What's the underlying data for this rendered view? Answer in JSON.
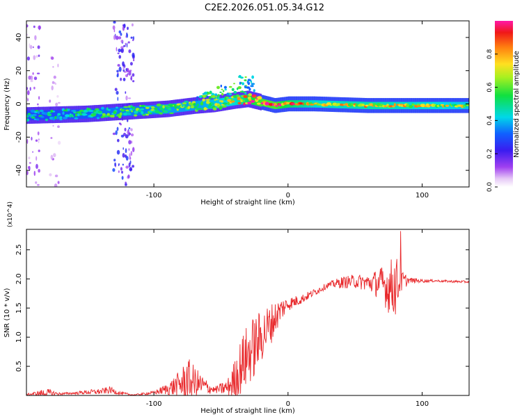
{
  "title": "C2E2.2026.051.05.34.G12",
  "colors": {
    "snr_line": "#e8282b",
    "spectrogram_background": "#ffffff"
  },
  "chart_data": [
    {
      "type": "heatmap",
      "name": "spectrogram",
      "xlabel": "Height of straight line (km)",
      "ylabel": "Frequency (Hz)",
      "xlim": [
        -195,
        135
      ],
      "ylim": [
        -50,
        50
      ],
      "xticks": [
        -100,
        0,
        100
      ],
      "xtick_labels": [
        "-100",
        "0",
        "100"
      ],
      "yticks": [
        -40,
        -20,
        0,
        20,
        40
      ],
      "ytick_labels": [
        "-40",
        "-20",
        "0",
        "20",
        "40"
      ],
      "colorbar": {
        "label": "Normalized spectral amplitude",
        "range": [
          0,
          1
        ],
        "ticks": [
          0,
          0.2,
          0.4,
          0.6,
          0.8
        ],
        "tick_labels": [
          "0.0",
          "0.2",
          "0.4",
          "0.6",
          "0.8"
        ],
        "colormap": "rainbow (white, violet, blue, cyan, green, yellow, orange, red, magenta)"
      },
      "ridge": {
        "x": [
          -195,
          -150,
          -130,
          -110,
          -90,
          -70,
          -55,
          -40,
          -30,
          -20,
          -10,
          0,
          20,
          60,
          100,
          135
        ],
        "center_freq": [
          -7,
          -6,
          -5,
          -4,
          -3,
          -1,
          0,
          2,
          3,
          1,
          -1,
          0,
          0,
          -1,
          -1,
          -1
        ],
        "amplitude": [
          0.45,
          0.5,
          0.55,
          0.55,
          0.6,
          0.6,
          0.65,
          0.7,
          0.85,
          0.95,
          0.95,
          0.85,
          0.7,
          0.75,
          0.7,
          0.65
        ]
      },
      "noise_bands": [
        {
          "x_range": [
            -130,
            -115
          ],
          "freq_range": [
            -50,
            50
          ],
          "amplitude": 0.25
        },
        {
          "x_range": [
            -195,
            -185
          ],
          "freq_range": [
            -50,
            50
          ],
          "amplitude": 0.15
        },
        {
          "x_range": [
            -178,
            -170
          ],
          "freq_range": [
            -50,
            30
          ],
          "amplitude": 0.1
        }
      ]
    },
    {
      "type": "line",
      "name": "snr",
      "xlabel": "Height of straight line (km)",
      "ylabel": "SNR (10 * v/v)",
      "y_multiplier": "(x10^4)",
      "xlim": [
        -195,
        135
      ],
      "ylim": [
        0,
        2.85
      ],
      "xticks": [
        -100,
        0,
        100
      ],
      "xtick_labels": [
        "-100",
        "0",
        "100"
      ],
      "yticks": [
        0.5,
        1.0,
        1.5,
        2.0,
        2.5
      ],
      "ytick_labels": [
        "0.5",
        "1.0",
        "1.5",
        "2.0",
        "2.5"
      ],
      "series": [
        {
          "name": "SNR",
          "x": [
            -195,
            -180,
            -170,
            -160,
            -150,
            -140,
            -133,
            -125,
            -115,
            -100,
            -90,
            -80,
            -75,
            -70,
            -65,
            -55,
            -45,
            -40,
            -35,
            -30,
            -25,
            -20,
            -15,
            -10,
            -5,
            0,
            5,
            10,
            20,
            30,
            40,
            50,
            60,
            70,
            75,
            80,
            85,
            90,
            100,
            110,
            120,
            135
          ],
          "mean": [
            0.02,
            0.05,
            0.03,
            0.04,
            0.06,
            0.07,
            0.1,
            0.04,
            0.01,
            0.05,
            0.12,
            0.22,
            0.3,
            0.25,
            0.2,
            0.1,
            0.15,
            0.3,
            0.55,
            0.75,
            0.9,
            1.05,
            1.2,
            1.35,
            1.5,
            1.58,
            1.62,
            1.66,
            1.78,
            1.9,
            1.95,
            1.97,
            1.95,
            1.95,
            1.9,
            1.95,
            1.98,
            1.98,
            1.97,
            1.97,
            1.96,
            1.95
          ],
          "spread": [
            0.01,
            0.08,
            0.02,
            0.02,
            0.04,
            0.05,
            0.06,
            0.03,
            0.01,
            0.03,
            0.1,
            0.25,
            0.4,
            0.3,
            0.2,
            0.05,
            0.15,
            0.35,
            0.5,
            0.55,
            0.55,
            0.45,
            0.4,
            0.3,
            0.2,
            0.12,
            0.1,
            0.08,
            0.06,
            0.05,
            0.1,
            0.12,
            0.15,
            0.3,
            0.45,
            0.55,
            0.2,
            0.05,
            0.03,
            0.02,
            0.02,
            0.02
          ],
          "peak": {
            "x": 84,
            "y": 2.82
          }
        }
      ]
    }
  ]
}
